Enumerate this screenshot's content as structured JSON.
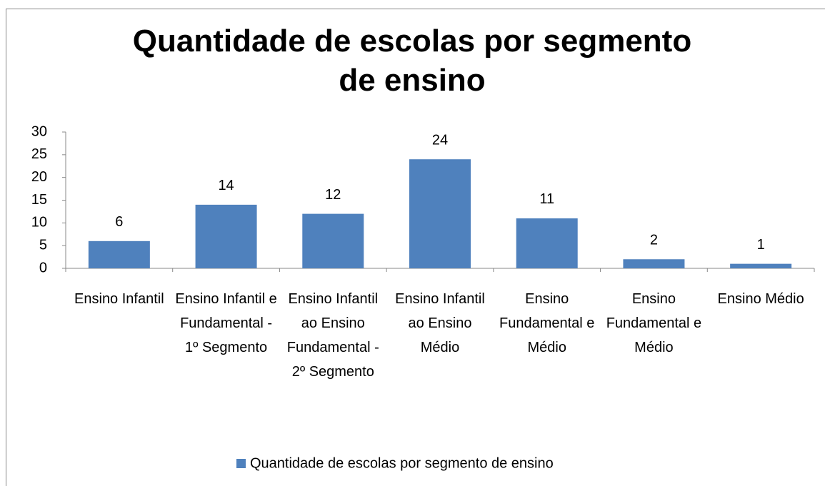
{
  "chart_data": {
    "type": "bar",
    "title": "Quantidade de escolas por segmento de ensino",
    "categories": [
      "Ensino Infantil",
      "Ensino Infantil e Fundamental - 1º Segmento",
      "Ensino Infantil ao Ensino Fundamental - 2º Segmento",
      "Ensino Infantil ao Ensino Médio",
      "Ensino Fundamental e Médio",
      "Ensino Fundamental e Médio",
      "Ensino Médio"
    ],
    "series": [
      {
        "name": "Quantidade de escolas por segmento de ensino",
        "color": "#4f81bd",
        "values": [
          6,
          14,
          12,
          24,
          11,
          2,
          1
        ]
      }
    ],
    "ylim": [
      0,
      30
    ],
    "yticks": [
      0,
      5,
      10,
      15,
      20,
      25,
      30
    ],
    "legend": "bottom"
  }
}
